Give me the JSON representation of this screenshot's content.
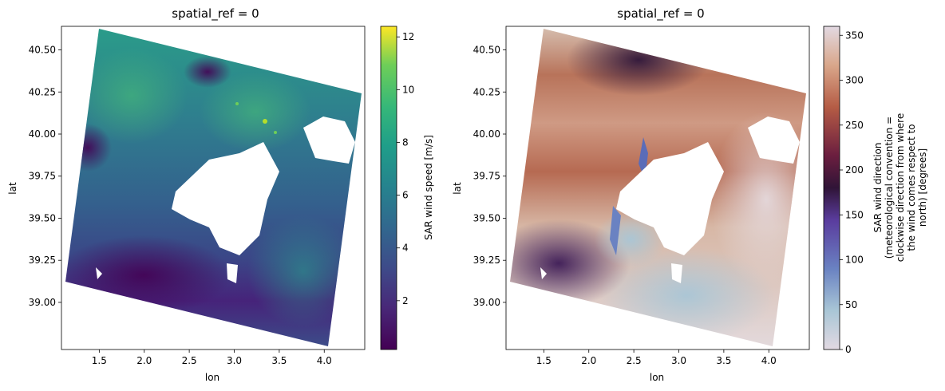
{
  "chart_data": [
    {
      "type": "heatmap",
      "title": "spatial_ref = 0",
      "xlabel": "lon",
      "ylabel": "lat",
      "xlim": [
        1.08,
        4.45
      ],
      "ylim": [
        38.72,
        40.64
      ],
      "xticks": [
        1.5,
        2.0,
        2.5,
        3.0,
        3.5,
        4.0
      ],
      "yticks": [
        39.0,
        39.25,
        39.5,
        39.75,
        40.0,
        40.25,
        40.5
      ],
      "colormap": "viridis",
      "colorbar": {
        "label": "SAR wind speed [m/s]",
        "range": [
          0.15,
          12.4
        ],
        "ticks": [
          2,
          4,
          6,
          8,
          10,
          12
        ]
      },
      "swath_corners": [
        [
          1.54,
          40.61
        ],
        [
          4.44,
          40.22
        ],
        [
          4.05,
          38.73
        ],
        [
          1.18,
          39.13
        ]
      ],
      "land_mask": "Mallorca / Menorca (white)",
      "description_fields": {
        "north_band_speed": "5-7",
        "south_band_speed": "0.5-2"
      }
    },
    {
      "type": "heatmap",
      "title": "spatial_ref = 0",
      "xlabel": "lon",
      "ylabel": "lat",
      "xlim": [
        1.08,
        4.45
      ],
      "ylim": [
        38.72,
        40.64
      ],
      "xticks": [
        1.5,
        2.0,
        2.5,
        3.0,
        3.5,
        4.0
      ],
      "yticks": [
        39.0,
        39.25,
        39.5,
        39.75,
        40.0,
        40.25,
        40.5
      ],
      "colormap": "twilight",
      "colorbar": {
        "label_lines": [
          "SAR wind direction",
          "(meteorological convention =",
          "clockwise direction from where",
          "the wind comes respect to",
          "north) [degrees]"
        ],
        "range": [
          0,
          360
        ],
        "ticks": [
          0,
          50,
          100,
          150,
          200,
          250,
          300,
          350
        ]
      },
      "swath_corners": [
        [
          1.54,
          40.61
        ],
        [
          4.44,
          40.22
        ],
        [
          4.05,
          38.73
        ],
        [
          1.18,
          39.13
        ]
      ]
    }
  ]
}
